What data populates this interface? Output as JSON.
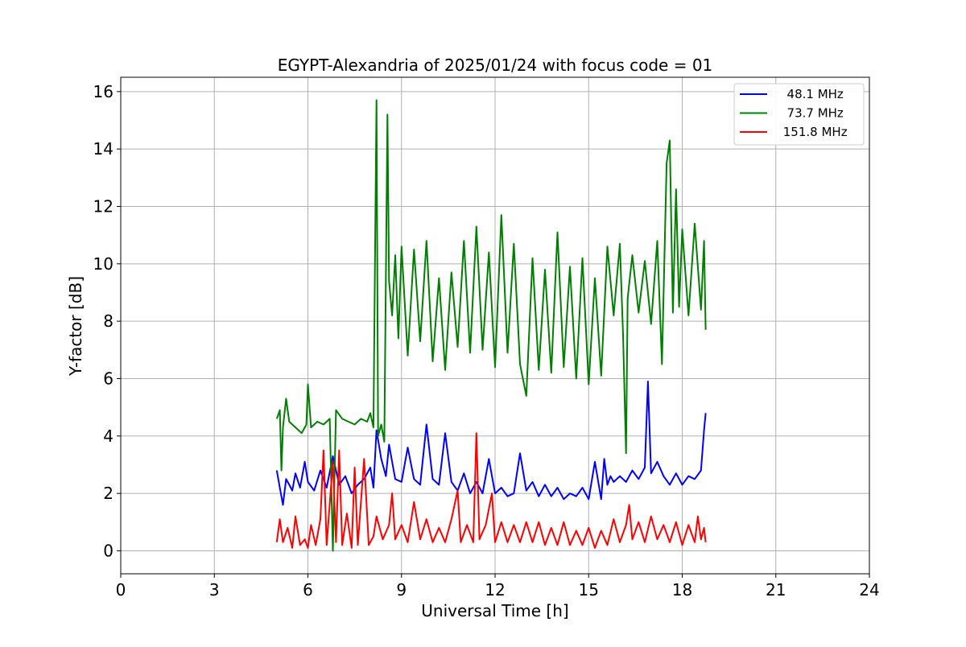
{
  "chart_data": {
    "type": "line",
    "title": "EGYPT-Alexandria of 2025/01/24 with focus code = 01",
    "xlabel": "Universal Time [h]",
    "ylabel": "Y-factor [dB]",
    "xlim": [
      0,
      24
    ],
    "ylim": [
      -0.8,
      16.5
    ],
    "x_ticks": [
      0,
      3,
      6,
      9,
      12,
      15,
      18,
      21,
      24
    ],
    "y_ticks": [
      0,
      2,
      4,
      6,
      8,
      10,
      12,
      14,
      16
    ],
    "grid": true,
    "legend_position": "top-right",
    "series": [
      {
        "name": "48.1 MHz",
        "legend_label": "  48.1 MHz",
        "color": "#0000ff",
        "points": [
          [
            5.0,
            2.8
          ],
          [
            5.1,
            2.2
          ],
          [
            5.2,
            1.6
          ],
          [
            5.3,
            2.5
          ],
          [
            5.4,
            2.3
          ],
          [
            5.5,
            2.1
          ],
          [
            5.6,
            2.7
          ],
          [
            5.75,
            2.2
          ],
          [
            5.9,
            3.1
          ],
          [
            6.0,
            2.4
          ],
          [
            6.2,
            2.1
          ],
          [
            6.4,
            2.8
          ],
          [
            6.6,
            2.2
          ],
          [
            6.8,
            3.3
          ],
          [
            7.0,
            2.3
          ],
          [
            7.2,
            2.6
          ],
          [
            7.4,
            2.0
          ],
          [
            7.6,
            2.3
          ],
          [
            7.8,
            2.5
          ],
          [
            8.0,
            2.9
          ],
          [
            8.1,
            2.2
          ],
          [
            8.2,
            4.2
          ],
          [
            8.35,
            3.2
          ],
          [
            8.5,
            2.6
          ],
          [
            8.6,
            3.7
          ],
          [
            8.8,
            2.5
          ],
          [
            9.0,
            2.4
          ],
          [
            9.2,
            3.6
          ],
          [
            9.4,
            2.5
          ],
          [
            9.6,
            2.3
          ],
          [
            9.8,
            4.4
          ],
          [
            10.0,
            2.5
          ],
          [
            10.2,
            2.3
          ],
          [
            10.4,
            4.1
          ],
          [
            10.6,
            2.4
          ],
          [
            10.8,
            2.1
          ],
          [
            11.0,
            2.7
          ],
          [
            11.2,
            2.0
          ],
          [
            11.4,
            2.4
          ],
          [
            11.6,
            2.0
          ],
          [
            11.8,
            3.2
          ],
          [
            12.0,
            2.0
          ],
          [
            12.2,
            2.2
          ],
          [
            12.4,
            1.9
          ],
          [
            12.6,
            2.0
          ],
          [
            12.8,
            3.4
          ],
          [
            13.0,
            2.1
          ],
          [
            13.2,
            2.4
          ],
          [
            13.4,
            1.9
          ],
          [
            13.6,
            2.3
          ],
          [
            13.8,
            1.9
          ],
          [
            14.0,
            2.2
          ],
          [
            14.2,
            1.8
          ],
          [
            14.4,
            2.0
          ],
          [
            14.6,
            1.9
          ],
          [
            14.8,
            2.2
          ],
          [
            15.0,
            1.8
          ],
          [
            15.2,
            3.1
          ],
          [
            15.4,
            1.8
          ],
          [
            15.5,
            3.2
          ],
          [
            15.6,
            2.3
          ],
          [
            15.7,
            2.6
          ],
          [
            15.8,
            2.4
          ],
          [
            16.0,
            2.6
          ],
          [
            16.2,
            2.4
          ],
          [
            16.4,
            2.8
          ],
          [
            16.6,
            2.5
          ],
          [
            16.8,
            2.9
          ],
          [
            16.9,
            5.9
          ],
          [
            17.0,
            2.7
          ],
          [
            17.2,
            3.1
          ],
          [
            17.4,
            2.6
          ],
          [
            17.6,
            2.3
          ],
          [
            17.8,
            2.7
          ],
          [
            18.0,
            2.3
          ],
          [
            18.2,
            2.6
          ],
          [
            18.4,
            2.5
          ],
          [
            18.6,
            2.8
          ],
          [
            18.7,
            4.2
          ],
          [
            18.75,
            4.8
          ]
        ]
      },
      {
        "name": "73.7 MHz",
        "legend_label": "  73.7 MHz",
        "color": "#008000",
        "points": [
          [
            5.0,
            4.6
          ],
          [
            5.1,
            4.9
          ],
          [
            5.15,
            2.8
          ],
          [
            5.2,
            4.3
          ],
          [
            5.3,
            5.3
          ],
          [
            5.4,
            4.5
          ],
          [
            5.6,
            4.3
          ],
          [
            5.8,
            4.1
          ],
          [
            5.95,
            4.4
          ],
          [
            6.0,
            5.8
          ],
          [
            6.1,
            4.3
          ],
          [
            6.3,
            4.5
          ],
          [
            6.5,
            4.4
          ],
          [
            6.7,
            4.6
          ],
          [
            6.8,
            0.0
          ],
          [
            6.9,
            4.9
          ],
          [
            7.1,
            4.6
          ],
          [
            7.3,
            4.5
          ],
          [
            7.5,
            4.4
          ],
          [
            7.7,
            4.6
          ],
          [
            7.9,
            4.5
          ],
          [
            8.0,
            4.8
          ],
          [
            8.1,
            4.3
          ],
          [
            8.2,
            15.7
          ],
          [
            8.25,
            4.0
          ],
          [
            8.35,
            4.4
          ],
          [
            8.45,
            3.8
          ],
          [
            8.55,
            15.2
          ],
          [
            8.6,
            9.4
          ],
          [
            8.7,
            8.2
          ],
          [
            8.8,
            10.3
          ],
          [
            8.9,
            7.4
          ],
          [
            9.0,
            10.6
          ],
          [
            9.2,
            6.8
          ],
          [
            9.4,
            10.5
          ],
          [
            9.6,
            7.3
          ],
          [
            9.8,
            10.8
          ],
          [
            10.0,
            6.6
          ],
          [
            10.2,
            9.5
          ],
          [
            10.4,
            6.3
          ],
          [
            10.6,
            9.7
          ],
          [
            10.8,
            7.1
          ],
          [
            11.0,
            10.8
          ],
          [
            11.2,
            6.9
          ],
          [
            11.4,
            11.3
          ],
          [
            11.6,
            7.0
          ],
          [
            11.8,
            10.4
          ],
          [
            12.0,
            6.4
          ],
          [
            12.2,
            11.7
          ],
          [
            12.4,
            6.9
          ],
          [
            12.6,
            10.7
          ],
          [
            12.8,
            6.5
          ],
          [
            13.0,
            5.4
          ],
          [
            13.2,
            10.2
          ],
          [
            13.4,
            6.3
          ],
          [
            13.6,
            9.8
          ],
          [
            13.8,
            6.2
          ],
          [
            14.0,
            11.1
          ],
          [
            14.2,
            6.4
          ],
          [
            14.4,
            9.9
          ],
          [
            14.6,
            6.0
          ],
          [
            14.8,
            10.2
          ],
          [
            15.0,
            5.8
          ],
          [
            15.2,
            9.5
          ],
          [
            15.4,
            6.1
          ],
          [
            15.6,
            10.6
          ],
          [
            15.8,
            8.2
          ],
          [
            16.0,
            10.7
          ],
          [
            16.1,
            7.6
          ],
          [
            16.2,
            3.4
          ],
          [
            16.25,
            8.8
          ],
          [
            16.4,
            10.3
          ],
          [
            16.6,
            8.3
          ],
          [
            16.8,
            10.1
          ],
          [
            17.0,
            7.9
          ],
          [
            17.2,
            10.8
          ],
          [
            17.35,
            6.5
          ],
          [
            17.5,
            13.5
          ],
          [
            17.6,
            14.3
          ],
          [
            17.7,
            8.3
          ],
          [
            17.8,
            12.6
          ],
          [
            17.9,
            8.5
          ],
          [
            18.0,
            11.2
          ],
          [
            18.2,
            8.2
          ],
          [
            18.4,
            11.4
          ],
          [
            18.6,
            8.4
          ],
          [
            18.7,
            10.8
          ],
          [
            18.75,
            7.7
          ]
        ]
      },
      {
        "name": "151.8 MHz",
        "legend_label": " 151.8 MHz",
        "color": "#ff0000",
        "points": [
          [
            5.0,
            0.3
          ],
          [
            5.1,
            1.1
          ],
          [
            5.2,
            0.3
          ],
          [
            5.35,
            0.8
          ],
          [
            5.5,
            0.1
          ],
          [
            5.6,
            1.2
          ],
          [
            5.75,
            0.2
          ],
          [
            5.9,
            0.4
          ],
          [
            6.0,
            0.1
          ],
          [
            6.1,
            0.9
          ],
          [
            6.25,
            0.2
          ],
          [
            6.4,
            1.1
          ],
          [
            6.5,
            3.5
          ],
          [
            6.6,
            0.2
          ],
          [
            6.8,
            3.1
          ],
          [
            6.9,
            0.3
          ],
          [
            7.0,
            3.5
          ],
          [
            7.1,
            0.2
          ],
          [
            7.25,
            1.3
          ],
          [
            7.4,
            0.1
          ],
          [
            7.5,
            2.9
          ],
          [
            7.6,
            0.2
          ],
          [
            7.8,
            3.2
          ],
          [
            7.95,
            0.2
          ],
          [
            8.1,
            0.5
          ],
          [
            8.2,
            1.2
          ],
          [
            8.4,
            0.4
          ],
          [
            8.6,
            0.9
          ],
          [
            8.7,
            2.0
          ],
          [
            8.8,
            0.4
          ],
          [
            9.0,
            0.9
          ],
          [
            9.2,
            0.3
          ],
          [
            9.4,
            1.7
          ],
          [
            9.6,
            0.4
          ],
          [
            9.8,
            1.1
          ],
          [
            10.0,
            0.3
          ],
          [
            10.2,
            0.8
          ],
          [
            10.4,
            0.3
          ],
          [
            10.6,
            1.1
          ],
          [
            10.8,
            2.1
          ],
          [
            10.9,
            0.3
          ],
          [
            11.1,
            0.9
          ],
          [
            11.3,
            0.3
          ],
          [
            11.4,
            4.1
          ],
          [
            11.5,
            0.4
          ],
          [
            11.7,
            0.9
          ],
          [
            11.9,
            2.0
          ],
          [
            12.0,
            0.3
          ],
          [
            12.2,
            1.0
          ],
          [
            12.4,
            0.3
          ],
          [
            12.6,
            0.9
          ],
          [
            12.8,
            0.3
          ],
          [
            13.0,
            1.0
          ],
          [
            13.2,
            0.3
          ],
          [
            13.4,
            1.0
          ],
          [
            13.6,
            0.2
          ],
          [
            13.8,
            0.8
          ],
          [
            14.0,
            0.2
          ],
          [
            14.2,
            1.0
          ],
          [
            14.4,
            0.2
          ],
          [
            14.6,
            0.7
          ],
          [
            14.8,
            0.2
          ],
          [
            15.0,
            0.8
          ],
          [
            15.2,
            0.1
          ],
          [
            15.4,
            0.7
          ],
          [
            15.6,
            0.2
          ],
          [
            15.8,
            1.1
          ],
          [
            16.0,
            0.3
          ],
          [
            16.2,
            0.9
          ],
          [
            16.3,
            1.6
          ],
          [
            16.4,
            0.4
          ],
          [
            16.6,
            1.0
          ],
          [
            16.8,
            0.3
          ],
          [
            17.0,
            1.2
          ],
          [
            17.2,
            0.4
          ],
          [
            17.4,
            0.9
          ],
          [
            17.6,
            0.3
          ],
          [
            17.8,
            1.0
          ],
          [
            18.0,
            0.2
          ],
          [
            18.2,
            0.9
          ],
          [
            18.4,
            0.3
          ],
          [
            18.5,
            1.2
          ],
          [
            18.6,
            0.4
          ],
          [
            18.7,
            0.8
          ],
          [
            18.75,
            0.3
          ]
        ]
      }
    ]
  }
}
